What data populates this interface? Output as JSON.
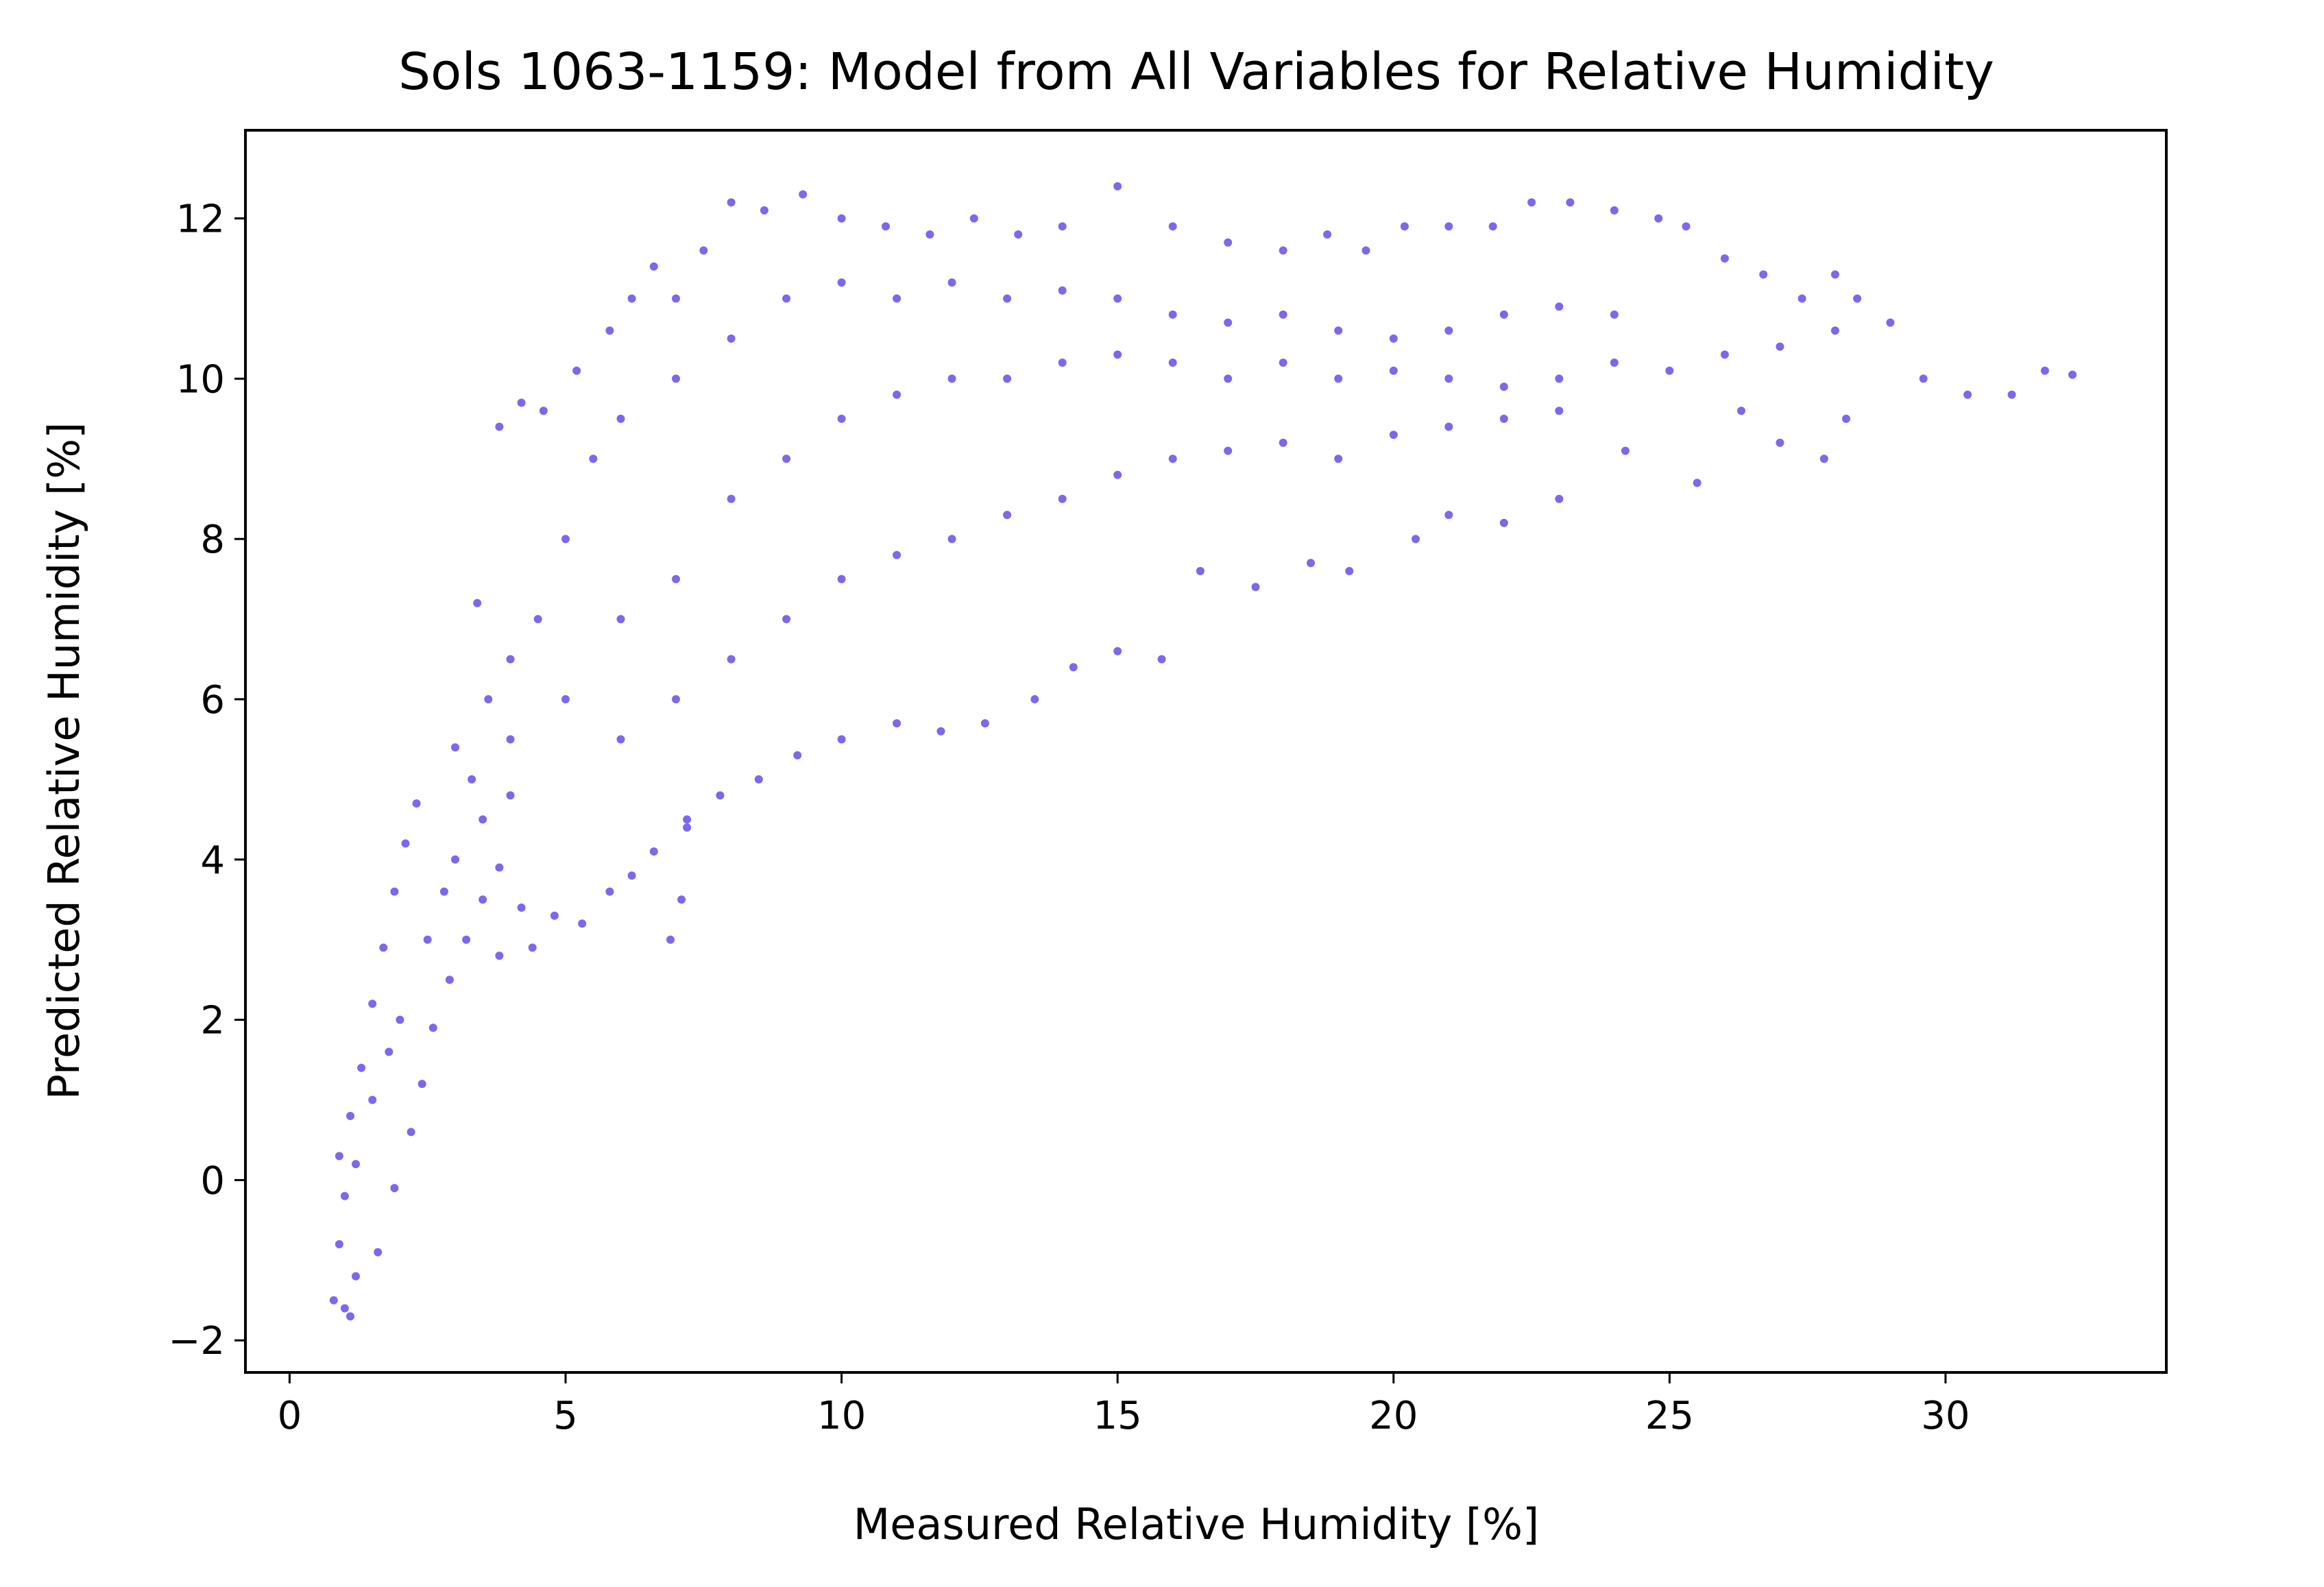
{
  "chart_data": {
    "type": "scatter",
    "title": "Sols 1063-1159: Model from All Variables for Relative Humidity",
    "xlabel": "Measured Relative Humidity [%]",
    "ylabel": "Predicted Relative Humidity [%]",
    "xlim": [
      -0.8,
      34.0
    ],
    "ylim": [
      -2.4,
      13.1
    ],
    "xticks": [
      0,
      5,
      10,
      15,
      20,
      25,
      30
    ],
    "xtick_labels": [
      "0",
      "5",
      "10",
      "15",
      "20",
      "25",
      "30"
    ],
    "yticks": [
      -2,
      0,
      2,
      4,
      6,
      8,
      10,
      12
    ],
    "ytick_labels": [
      "−2",
      "0",
      "2",
      "4",
      "6",
      "8",
      "10",
      "12"
    ],
    "grid": false,
    "legend": "none",
    "marker_color": "#7b68ee",
    "series": [
      {
        "points": [
          [
            0.8,
            -1.5
          ],
          [
            0.9,
            -0.8
          ],
          [
            1.0,
            -1.6
          ],
          [
            1.1,
            -1.7
          ],
          [
            1.2,
            -1.2
          ],
          [
            1.0,
            -0.2
          ],
          [
            0.9,
            0.3
          ],
          [
            1.1,
            0.8
          ],
          [
            1.3,
            1.4
          ],
          [
            1.5,
            2.2
          ],
          [
            1.7,
            2.9
          ],
          [
            1.9,
            3.6
          ],
          [
            2.1,
            4.2
          ],
          [
            2.3,
            4.7
          ],
          [
            1.6,
            -0.9
          ],
          [
            1.9,
            -0.1
          ],
          [
            2.2,
            0.6
          ],
          [
            2.4,
            1.2
          ],
          [
            2.6,
            1.9
          ],
          [
            2.9,
            2.5
          ],
          [
            3.2,
            3.0
          ],
          [
            3.5,
            3.5
          ],
          [
            3.8,
            3.9
          ],
          [
            4.2,
            3.4
          ],
          [
            3.0,
            5.4
          ],
          [
            3.4,
            7.2
          ],
          [
            3.8,
            9.4
          ],
          [
            4.2,
            9.7
          ],
          [
            4.6,
            9.6
          ],
          [
            5.2,
            10.1
          ],
          [
            5.8,
            10.6
          ],
          [
            6.2,
            11.0
          ],
          [
            6.6,
            11.4
          ],
          [
            7.0,
            11.0
          ],
          [
            7.5,
            11.6
          ],
          [
            8.0,
            12.2
          ],
          [
            8.6,
            12.1
          ],
          [
            9.3,
            12.3
          ],
          [
            10.0,
            12.0
          ],
          [
            10.8,
            11.9
          ],
          [
            11.6,
            11.8
          ],
          [
            12.4,
            12.0
          ],
          [
            13.2,
            11.8
          ],
          [
            14.0,
            11.9
          ],
          [
            15.0,
            12.4
          ],
          [
            16.0,
            11.9
          ],
          [
            17.0,
            11.7
          ],
          [
            18.0,
            11.6
          ],
          [
            18.8,
            11.8
          ],
          [
            19.5,
            11.6
          ],
          [
            20.2,
            11.9
          ],
          [
            21.0,
            11.9
          ],
          [
            21.8,
            11.9
          ],
          [
            22.5,
            12.2
          ],
          [
            23.2,
            12.2
          ],
          [
            24.0,
            12.1
          ],
          [
            24.8,
            12.0
          ],
          [
            25.3,
            11.9
          ],
          [
            26.0,
            11.5
          ],
          [
            26.7,
            11.3
          ],
          [
            27.4,
            11.0
          ],
          [
            28.0,
            11.3
          ],
          [
            28.4,
            11.0
          ],
          [
            29.0,
            10.7
          ],
          [
            29.6,
            10.0
          ],
          [
            30.4,
            9.8
          ],
          [
            31.2,
            9.8
          ],
          [
            31.8,
            10.1
          ],
          [
            32.3,
            10.05
          ],
          [
            26.3,
            9.6
          ],
          [
            27.0,
            9.2
          ],
          [
            27.8,
            9.0
          ],
          [
            28.2,
            9.5
          ],
          [
            25.5,
            8.7
          ],
          [
            24.2,
            9.1
          ],
          [
            23.0,
            8.5
          ],
          [
            22.0,
            8.2
          ],
          [
            21.0,
            8.3
          ],
          [
            20.4,
            8.0
          ],
          [
            19.2,
            7.6
          ],
          [
            18.5,
            7.7
          ],
          [
            17.5,
            7.4
          ],
          [
            16.5,
            7.6
          ],
          [
            15.8,
            6.5
          ],
          [
            15.0,
            6.6
          ],
          [
            14.2,
            6.4
          ],
          [
            13.5,
            6.0
          ],
          [
            12.6,
            5.7
          ],
          [
            11.8,
            5.6
          ],
          [
            11.0,
            5.7
          ],
          [
            10.0,
            5.5
          ],
          [
            9.2,
            5.3
          ],
          [
            8.5,
            5.0
          ],
          [
            7.8,
            4.8
          ],
          [
            7.2,
            4.5
          ],
          [
            6.6,
            4.1
          ],
          [
            6.2,
            3.8
          ],
          [
            5.8,
            3.6
          ],
          [
            5.3,
            3.2
          ],
          [
            4.8,
            3.3
          ],
          [
            4.4,
            2.9
          ],
          [
            3.8,
            2.8
          ],
          [
            6.9,
            3.0
          ],
          [
            7.1,
            3.5
          ],
          [
            7.2,
            4.4
          ],
          [
            5.0,
            6.0
          ],
          [
            6.0,
            7.0
          ],
          [
            7.0,
            7.5
          ],
          [
            8.0,
            8.5
          ],
          [
            9.0,
            9.0
          ],
          [
            10.0,
            9.5
          ],
          [
            11.0,
            9.8
          ],
          [
            12.0,
            10.0
          ],
          [
            13.0,
            10.0
          ],
          [
            14.0,
            10.2
          ],
          [
            15.0,
            10.3
          ],
          [
            16.0,
            10.2
          ],
          [
            17.0,
            10.0
          ],
          [
            18.0,
            10.2
          ],
          [
            19.0,
            10.0
          ],
          [
            20.0,
            10.1
          ],
          [
            21.0,
            10.0
          ],
          [
            22.0,
            9.9
          ],
          [
            23.0,
            10.0
          ],
          [
            24.0,
            10.2
          ],
          [
            25.0,
            10.1
          ],
          [
            26.0,
            10.3
          ],
          [
            27.0,
            10.4
          ],
          [
            28.0,
            10.6
          ],
          [
            4.0,
            5.5
          ],
          [
            4.5,
            7.0
          ],
          [
            5.0,
            8.0
          ],
          [
            5.5,
            9.0
          ],
          [
            6.0,
            9.5
          ],
          [
            7.0,
            10.0
          ],
          [
            8.0,
            10.5
          ],
          [
            9.0,
            11.0
          ],
          [
            10.0,
            11.2
          ],
          [
            11.0,
            11.0
          ],
          [
            12.0,
            11.2
          ],
          [
            13.0,
            11.0
          ],
          [
            14.0,
            11.1
          ],
          [
            15.0,
            11.0
          ],
          [
            16.0,
            10.8
          ],
          [
            17.0,
            10.7
          ],
          [
            18.0,
            10.8
          ],
          [
            19.0,
            10.6
          ],
          [
            20.0,
            10.5
          ],
          [
            21.0,
            10.6
          ],
          [
            22.0,
            10.8
          ],
          [
            23.0,
            10.9
          ],
          [
            24.0,
            10.8
          ],
          [
            6.0,
            5.5
          ],
          [
            7.0,
            6.0
          ],
          [
            8.0,
            6.5
          ],
          [
            9.0,
            7.0
          ],
          [
            10.0,
            7.5
          ],
          [
            11.0,
            7.8
          ],
          [
            12.0,
            8.0
          ],
          [
            13.0,
            8.3
          ],
          [
            14.0,
            8.5
          ],
          [
            15.0,
            8.8
          ],
          [
            16.0,
            9.0
          ],
          [
            17.0,
            9.1
          ],
          [
            18.0,
            9.2
          ],
          [
            19.0,
            9.0
          ],
          [
            20.0,
            9.3
          ],
          [
            21.0,
            9.4
          ],
          [
            22.0,
            9.5
          ],
          [
            23.0,
            9.6
          ],
          [
            2.0,
            2.0
          ],
          [
            2.5,
            3.0
          ],
          [
            3.0,
            4.0
          ],
          [
            3.5,
            4.5
          ],
          [
            4.0,
            4.8
          ],
          [
            1.5,
            1.0
          ],
          [
            1.2,
            0.2
          ],
          [
            1.8,
            1.6
          ],
          [
            2.8,
            3.6
          ],
          [
            3.3,
            5.0
          ],
          [
            3.6,
            6.0
          ],
          [
            4.0,
            6.5
          ]
        ]
      }
    ]
  }
}
